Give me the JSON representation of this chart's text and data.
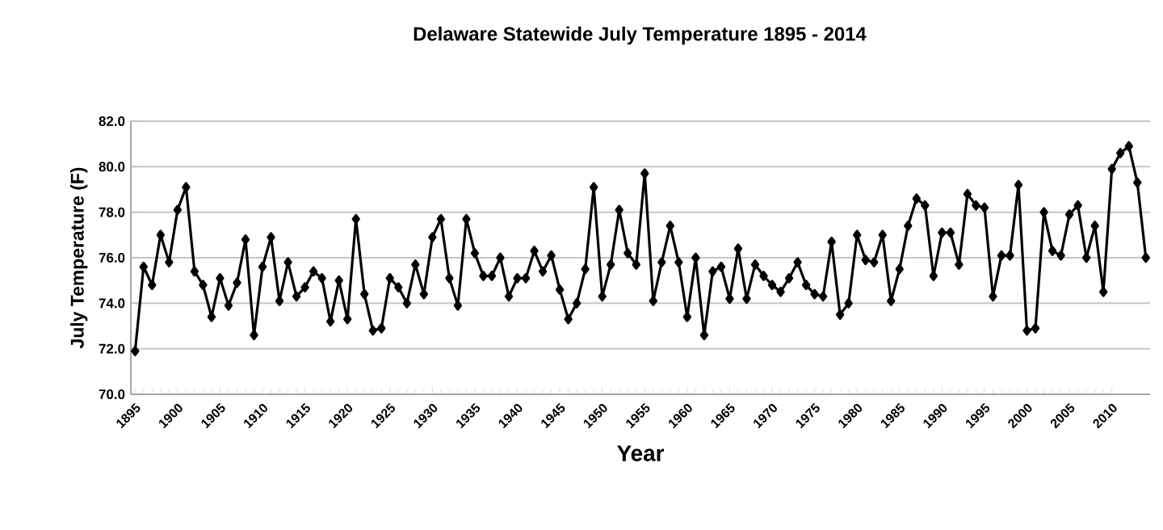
{
  "chart_data": {
    "type": "line",
    "title": "Delaware Statewide July Temperature 1895 - 2014",
    "xlabel": "Year",
    "ylabel": "July Temperature (F)",
    "x": [
      1895,
      1896,
      1897,
      1898,
      1899,
      1900,
      1901,
      1902,
      1903,
      1904,
      1905,
      1906,
      1907,
      1908,
      1909,
      1910,
      1911,
      1912,
      1913,
      1914,
      1915,
      1916,
      1917,
      1918,
      1919,
      1920,
      1921,
      1922,
      1923,
      1924,
      1925,
      1926,
      1927,
      1928,
      1929,
      1930,
      1931,
      1932,
      1933,
      1934,
      1935,
      1936,
      1937,
      1938,
      1939,
      1940,
      1941,
      1942,
      1943,
      1944,
      1945,
      1946,
      1947,
      1948,
      1949,
      1950,
      1951,
      1952,
      1953,
      1954,
      1955,
      1956,
      1957,
      1958,
      1959,
      1960,
      1961,
      1962,
      1963,
      1964,
      1965,
      1966,
      1967,
      1968,
      1969,
      1970,
      1971,
      1972,
      1973,
      1974,
      1975,
      1976,
      1977,
      1978,
      1979,
      1980,
      1981,
      1982,
      1983,
      1984,
      1985,
      1986,
      1987,
      1988,
      1989,
      1990,
      1991,
      1992,
      1993,
      1994,
      1995,
      1996,
      1997,
      1998,
      1999,
      2000,
      2001,
      2002,
      2003,
      2004,
      2005,
      2006,
      2007,
      2008,
      2009,
      2010,
      2011,
      2012,
      2013,
      2014
    ],
    "series": [
      {
        "color": "#000000",
        "values": [
          71.9,
          75.6,
          74.8,
          77.0,
          75.8,
          78.1,
          79.1,
          75.4,
          74.8,
          73.4,
          75.1,
          73.9,
          74.9,
          76.8,
          72.6,
          75.6,
          76.9,
          74.1,
          75.8,
          74.3,
          74.7,
          75.4,
          75.1,
          73.2,
          75.0,
          73.3,
          77.7,
          74.4,
          72.8,
          72.9,
          75.1,
          74.7,
          74.0,
          75.7,
          74.4,
          76.9,
          77.7,
          75.1,
          73.9,
          77.7,
          76.2,
          75.2,
          75.2,
          76.0,
          74.3,
          75.1,
          75.1,
          76.3,
          75.4,
          76.1,
          74.6,
          73.3,
          74.0,
          75.5,
          79.1,
          74.3,
          75.7,
          78.1,
          76.2,
          75.7,
          79.7,
          74.1,
          75.8,
          77.4,
          75.8,
          73.4,
          76.0,
          72.6,
          75.4,
          75.6,
          74.2,
          76.4,
          74.2,
          75.7,
          75.2,
          74.8,
          74.5,
          75.1,
          75.8,
          74.8,
          74.4,
          74.3,
          76.7,
          73.5,
          74.0,
          77.0,
          75.9,
          75.8,
          77.0,
          74.1,
          75.5,
          77.4,
          78.6,
          78.3,
          75.2,
          77.1,
          77.1,
          75.7,
          78.8,
          78.3,
          78.2,
          74.3,
          76.1,
          76.1,
          79.2,
          72.8,
          72.9,
          78.0,
          76.3,
          76.1,
          77.9,
          78.3,
          76.0,
          77.4,
          74.5,
          79.9,
          80.6,
          80.9,
          79.3,
          76.0
        ]
      }
    ],
    "xlim": [
      1894.5,
      2014.5
    ],
    "xticks": [
      1895,
      1900,
      1905,
      1910,
      1915,
      1920,
      1925,
      1930,
      1935,
      1940,
      1945,
      1950,
      1955,
      1960,
      1965,
      1970,
      1975,
      1980,
      1985,
      1990,
      1995,
      2000,
      2005,
      2010
    ],
    "ylim": [
      70,
      82
    ],
    "yticks": [
      {
        "value": 70,
        "label": "70.0"
      },
      {
        "value": 72,
        "label": "72.0"
      },
      {
        "value": 74,
        "label": "74.0"
      },
      {
        "value": 76,
        "label": "76.0"
      },
      {
        "value": 78,
        "label": "78.0"
      },
      {
        "value": 80,
        "label": "80.0"
      },
      {
        "value": 82,
        "label": "82.0"
      }
    ],
    "grid": "y",
    "marker": "diamond",
    "line_style": "solid"
  }
}
